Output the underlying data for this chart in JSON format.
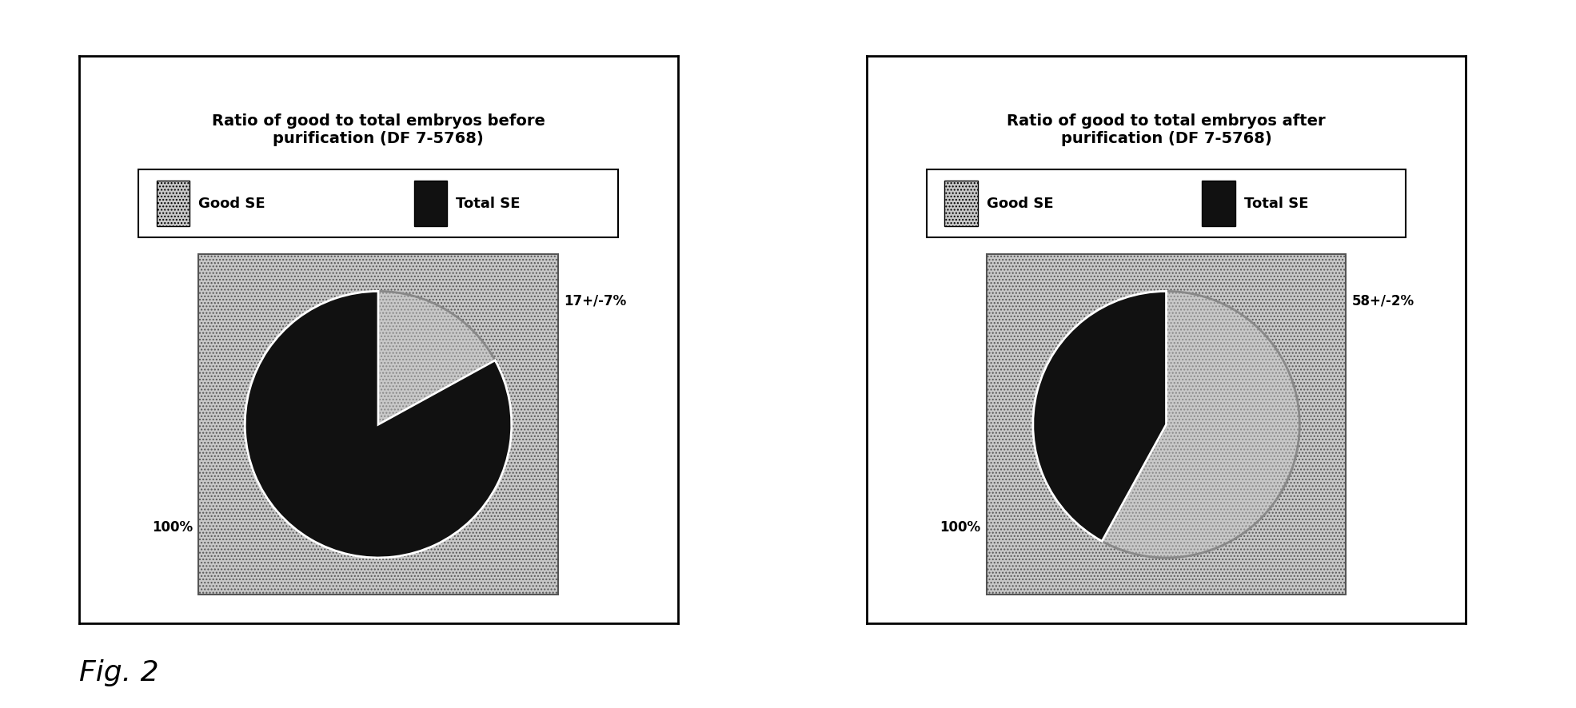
{
  "chart1": {
    "title": "Ratio of good to total embryos before\npurification (DF 7-5768)",
    "good_pct": 17,
    "total_pct": 83,
    "good_label": "17+/-7%",
    "total_label": "100%"
  },
  "chart2": {
    "title": "Ratio of good to total embryos after\npurification (DF 7-5768)",
    "good_pct": 58,
    "total_pct": 42,
    "good_label": "58+/-2%",
    "total_label": "100%"
  },
  "legend_good": "Good SE",
  "legend_total": "Total SE",
  "fig_label": "Fig. 2",
  "bg_color": "#ffffff",
  "good_hatch": "....",
  "good_facecolor": "#c8c8c8",
  "total_facecolor": "#111111",
  "title_fontsize": 14,
  "legend_fontsize": 13,
  "label_fontsize": 12,
  "fig2_fontsize": 26
}
